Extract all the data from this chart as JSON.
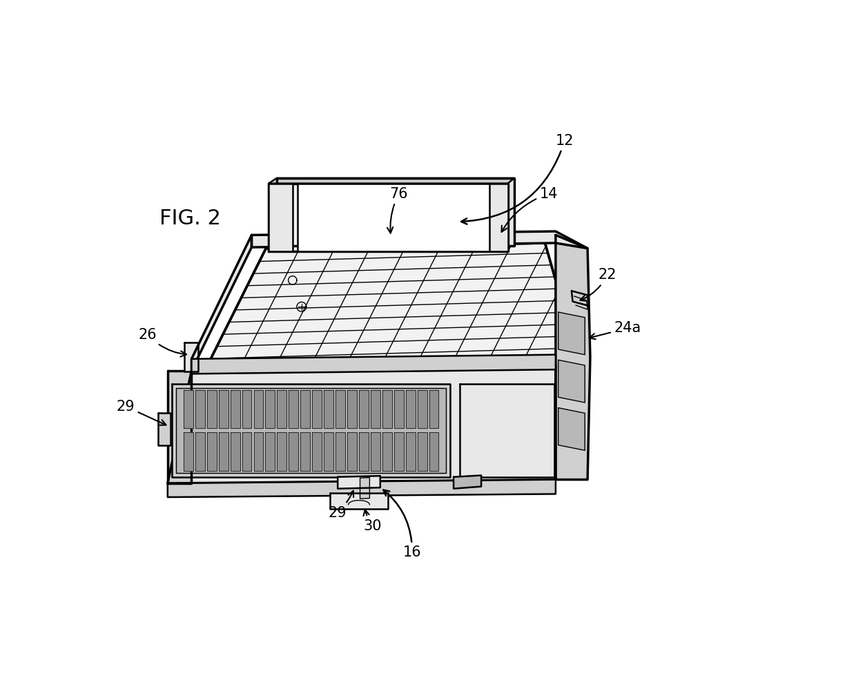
{
  "bg": "#ffffff",
  "lc": "#000000",
  "fig_width": 12.4,
  "fig_height": 10.08,
  "dpi": 100,
  "font_size": 15,
  "fig_label": "FIG. 2",
  "gray_light": "#e8e8e8",
  "gray_mid": "#d0d0d0",
  "gray_dark": "#b8b8b8",
  "gray_fill": "#f2f2f2"
}
